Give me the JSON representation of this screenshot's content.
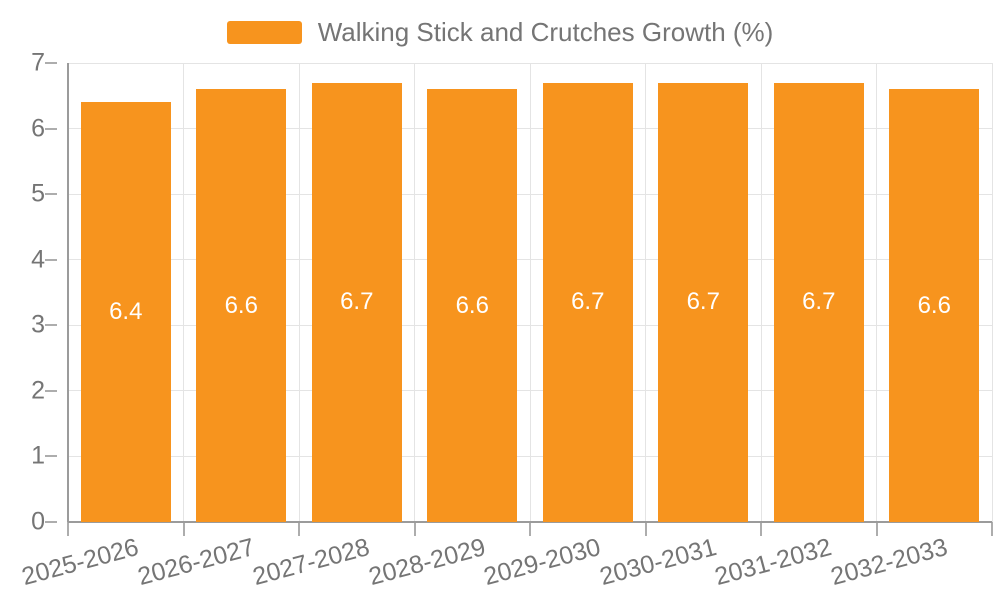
{
  "legend": {
    "label": "Walking Stick and Crutches Growth (%)"
  },
  "chart_data": {
    "type": "bar",
    "title": "Walking Stick and Crutches Growth (%)",
    "categories": [
      "2025-2026",
      "2026-2027",
      "2027-2028",
      "2028-2029",
      "2029-2030",
      "2030-2031",
      "2031-2032",
      "2032-2033"
    ],
    "values": [
      6.4,
      6.6,
      6.7,
      6.6,
      6.7,
      6.7,
      6.7,
      6.6
    ],
    "data_labels": [
      "6.4",
      "6.6",
      "6.7",
      "6.6",
      "6.7",
      "6.7",
      "6.7",
      "6.6"
    ],
    "xlabel": "",
    "ylabel": "",
    "ylim": [
      0,
      7
    ],
    "yticks": [
      0,
      1,
      2,
      3,
      4,
      5,
      6,
      7
    ],
    "grid": true,
    "legend_position": "top"
  },
  "colors": {
    "bar": "#F7941E",
    "grid": "#E4E4E4",
    "axis": "#9B9B9B",
    "tick": "#ADADAD",
    "text": "#757575",
    "data_label": "#FFFFFF",
    "background": "#FFFFFF"
  }
}
